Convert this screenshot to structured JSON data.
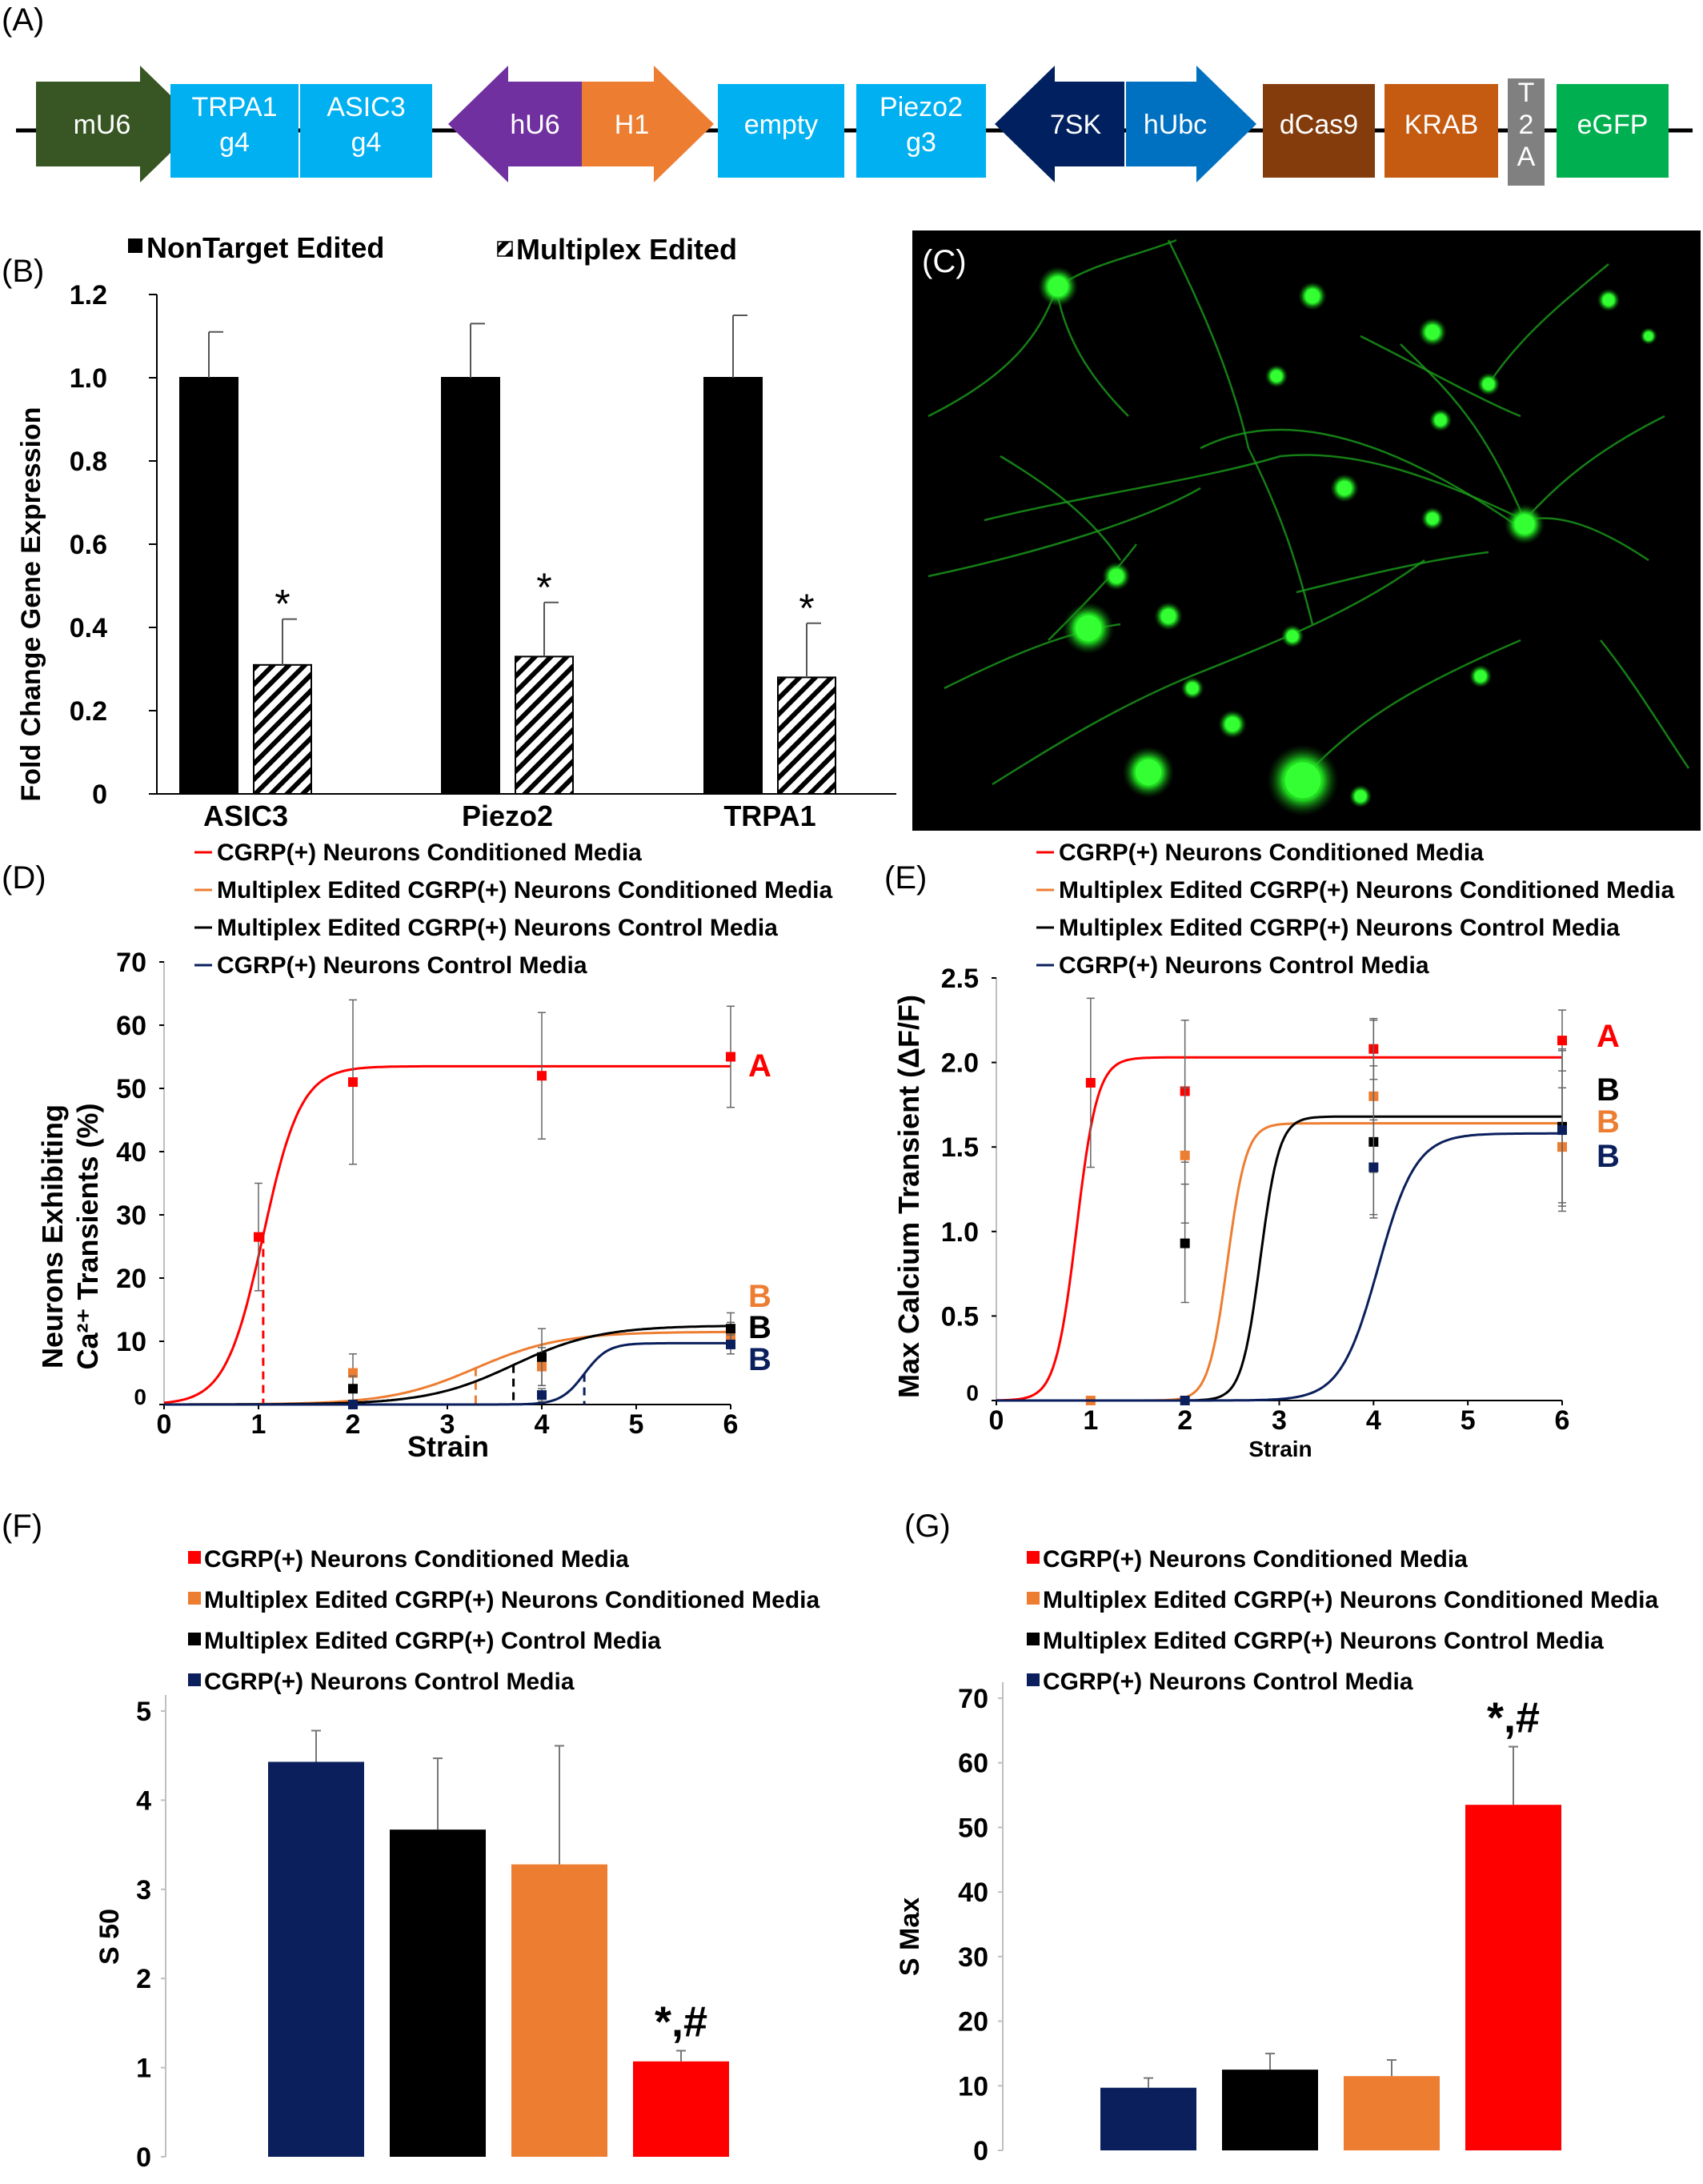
{
  "colors": {
    "red": "#ff0000",
    "orange": "#ed7d31",
    "black": "#000000",
    "navy": "#0a1f5c",
    "cyan": "#00b0f0",
    "green_dark": "#375623",
    "purple": "#7030a0",
    "navy_dark": "#002060",
    "blue_mid": "#0070c0",
    "brown": "#843c0c",
    "brown_light": "#c55a11",
    "grey": "#808080",
    "green": "#00b050"
  },
  "panels": {
    "A": "(A)",
    "B": "(B)",
    "C": "(C)",
    "D": "(D)",
    "E": "(E)",
    "F": "(F)",
    "G": "(G)"
  },
  "construct": [
    {
      "label": "mU6",
      "kind": "arrow-right",
      "color": "green_dark"
    },
    {
      "label": "TRPA1\ng4",
      "kind": "box",
      "color": "cyan"
    },
    {
      "label": "ASIC3\ng4",
      "kind": "box",
      "color": "cyan"
    },
    {
      "label": "hU6",
      "kind": "arrow-left",
      "color": "purple"
    },
    {
      "label": "H1",
      "kind": "arrow-right",
      "color": "orange"
    },
    {
      "label": "empty",
      "kind": "box",
      "color": "cyan"
    },
    {
      "label": "Piezo2\ng3",
      "kind": "box",
      "color": "cyan"
    },
    {
      "label": "7SK",
      "kind": "arrow-left",
      "color": "navy_dark"
    },
    {
      "label": "hUbc",
      "kind": "arrow-right",
      "color": "blue_mid"
    },
    {
      "label": "dCas9",
      "kind": "box",
      "color": "brown"
    },
    {
      "label": "KRAB",
      "kind": "box",
      "color": "brown_light"
    },
    {
      "label": "T\n2\nA",
      "kind": "box",
      "color": "grey"
    },
    {
      "label": "eGFP",
      "kind": "box",
      "color": "green"
    }
  ],
  "chart_data": [
    {
      "panel": "B",
      "type": "bar",
      "categories": [
        "ASIC3",
        "Piezo2",
        "TRPA1"
      ],
      "series": [
        {
          "name": "NonTarget Edited",
          "values": [
            1.0,
            1.0,
            1.0
          ],
          "errors": [
            0.11,
            0.13,
            0.15
          ]
        },
        {
          "name": "Multiplex Edited",
          "values": [
            0.31,
            0.33,
            0.28
          ],
          "errors": [
            0.11,
            0.13,
            0.13
          ]
        }
      ],
      "annotations": [
        "*",
        "*",
        "*"
      ],
      "ylabel": "Fold Change Gene Expression",
      "yticks": [
        "0",
        "0.2",
        "0.4",
        "0.6",
        "0.8",
        "1.0",
        "1.2"
      ],
      "ylim": [
        0,
        1.2
      ]
    },
    {
      "panel": "D",
      "type": "line",
      "legend": [
        "CGRP(+) Neurons Conditioned Media",
        "Multiplex Edited CGRP(+) Neurons Conditioned Media",
        "Multiplex Edited CGRP(+) Neurons Control Media",
        "CGRP(+) Neurons Control Media"
      ],
      "xlabel": "Strain",
      "ylabel_line1": "Neurons Exhibiting",
      "ylabel_line2": "Ca²⁺ Transients (%)",
      "xticks": [
        "0",
        "1",
        "2",
        "3",
        "4",
        "5",
        "6"
      ],
      "yticks": [
        "0",
        "10",
        "20",
        "30",
        "40",
        "50",
        "60",
        "70"
      ],
      "xlim": [
        0,
        6
      ],
      "ylim": [
        0,
        70
      ],
      "series": [
        {
          "name": "CGRP(+) Neurons Conditioned Media",
          "color": "red",
          "smax": 53.5,
          "s50": 1.05,
          "k": 5,
          "points": [
            [
              1,
              26.5
            ],
            [
              2,
              51
            ],
            [
              4,
              52
            ],
            [
              6,
              55
            ]
          ],
          "errors": [
            8.5,
            13,
            10,
            8
          ],
          "dashed_at": 1.05,
          "letter": "A"
        },
        {
          "name": "Multiplex Edited CGRP(+) Neurons Conditioned Media",
          "color": "orange",
          "smax": 11.5,
          "s50": 3.3,
          "k": 2.2,
          "points": [
            [
              2,
              5
            ],
            [
              4,
              6
            ],
            [
              6,
              11
            ]
          ],
          "errors": [
            3,
            3,
            2
          ],
          "dashed_at": 3.3,
          "letter": "B"
        },
        {
          "name": "Multiplex Edited CGRP(+) Neurons Control Media",
          "color": "black",
          "smax": 12.5,
          "s50": 3.7,
          "k": 2.2,
          "points": [
            [
              2,
              2.5
            ],
            [
              4,
              7.5
            ],
            [
              6,
              12
            ]
          ],
          "errors": [
            2,
            4.5,
            2.5
          ],
          "dashed_at": 3.7,
          "letter": "B"
        },
        {
          "name": "CGRP(+) Neurons Control Media",
          "color": "navy",
          "smax": 9.7,
          "s50": 4.45,
          "k": 8,
          "points": [
            [
              2,
              0
            ],
            [
              4,
              1.5
            ],
            [
              6,
              9.5
            ]
          ],
          "errors": [
            0,
            1,
            1.5
          ],
          "dashed_at": 4.45,
          "letter": "B"
        }
      ]
    },
    {
      "panel": "E",
      "type": "line",
      "legend": [
        "CGRP(+) Neurons Conditioned Media",
        "Multiplex Edited CGRP(+) Neurons Conditioned Media",
        "Multiplex Edited CGRP(+) Neurons Control Media",
        "CGRP(+) Neurons Control Media"
      ],
      "xlabel": "Strain",
      "ylabel": "Max Calcium Transient (ΔF/F)",
      "xticks": [
        "0",
        "1",
        "2",
        "3",
        "4",
        "5",
        "6"
      ],
      "yticks": [
        "0",
        "0.5",
        "1.0",
        "1.5",
        "2.0",
        "2.5"
      ],
      "xlim": [
        0,
        6
      ],
      "ylim": [
        0,
        2.5
      ],
      "series": [
        {
          "name": "CGRP(+) Neurons Conditioned Media",
          "color": "red",
          "smax": 2.03,
          "s50": 0.85,
          "k": 9,
          "points": [
            [
              1,
              1.88
            ],
            [
              2,
              1.83
            ],
            [
              4,
              2.08
            ],
            [
              6,
              2.13
            ]
          ],
          "errors": [
            0.5,
            0.42,
            0.18,
            0.18
          ],
          "letter": "A"
        },
        {
          "name": "Multiplex Edited CGRP(+) Neurons Conditioned Media",
          "color": "orange",
          "smax": 1.64,
          "s50": 2.45,
          "k": 10,
          "points": [
            [
              1,
              0
            ],
            [
              2,
              1.45
            ],
            [
              4,
              1.8
            ],
            [
              6,
              1.5
            ]
          ],
          "errors": [
            0,
            0.4,
            0.45,
            0.35
          ],
          "letter": "B"
        },
        {
          "name": "Multiplex Edited CGRP(+) Neurons Control Media",
          "color": "black",
          "smax": 1.68,
          "s50": 2.8,
          "k": 10,
          "points": [
            [
              2,
              0.93
            ],
            [
              4,
              1.53
            ],
            [
              6,
              1.62
            ]
          ],
          "errors": [
            0.35,
            0.45,
            0.45
          ],
          "letter": "B"
        },
        {
          "name": "CGRP(+) Neurons Control Media",
          "color": "navy",
          "smax": 1.58,
          "s50": 4.05,
          "k": 5,
          "points": [
            [
              2,
              0
            ],
            [
              4,
              1.38
            ],
            [
              6,
              1.6
            ]
          ],
          "errors": [
            0,
            0.28,
            0.48
          ],
          "letter": "B"
        }
      ]
    },
    {
      "panel": "F",
      "type": "bar",
      "legend": [
        "CGRP(+) Neurons Conditioned Media",
        "Multiplex Edited CGRP(+) Neurons Conditioned Media",
        "Multiplex Edited CGRP(+) Control Media",
        "CGRP(+) Neurons Control Media"
      ],
      "ylabel": "S 50",
      "yticks": [
        "0",
        "1",
        "2",
        "3",
        "4",
        "5"
      ],
      "ylim": [
        0,
        5
      ],
      "bars": [
        {
          "name": "CGRP(+) Neurons Control Media",
          "color": "navy",
          "value": 4.43,
          "error": 0.35
        },
        {
          "name": "Multiplex Edited CGRP(+) Control Media",
          "color": "black",
          "value": 3.67,
          "error": 0.8
        },
        {
          "name": "Multiplex Edited CGRP(+) Neurons Conditioned Media",
          "color": "orange",
          "value": 3.28,
          "error": 1.33
        },
        {
          "name": "CGRP(+) Neurons Conditioned Media",
          "color": "red",
          "value": 1.07,
          "error": 0.12,
          "annotation": "*,#"
        }
      ]
    },
    {
      "panel": "G",
      "type": "bar",
      "legend": [
        "CGRP(+) Neurons Conditioned Media",
        "Multiplex Edited CGRP(+) Neurons Conditioned Media",
        "Multiplex Edited CGRP(+) Neurons Control Media",
        "CGRP(+) Neurons Control Media"
      ],
      "ylabel": "S Max",
      "yticks": [
        "0",
        "10",
        "20",
        "30",
        "40",
        "50",
        "60",
        "70"
      ],
      "ylim": [
        0,
        70
      ],
      "bars": [
        {
          "name": "CGRP(+) Neurons Control Media",
          "color": "navy",
          "value": 9.7,
          "error": 1.5
        },
        {
          "name": "Multiplex Edited CGRP(+) Neurons Control Media",
          "color": "black",
          "value": 12.5,
          "error": 2.5
        },
        {
          "name": "Multiplex Edited CGRP(+) Neurons Conditioned Media",
          "color": "orange",
          "value": 11.5,
          "error": 2.5
        },
        {
          "name": "CGRP(+) Neurons Conditioned Media",
          "color": "red",
          "value": 53.5,
          "error": 9,
          "annotation": "*,#"
        }
      ]
    }
  ]
}
